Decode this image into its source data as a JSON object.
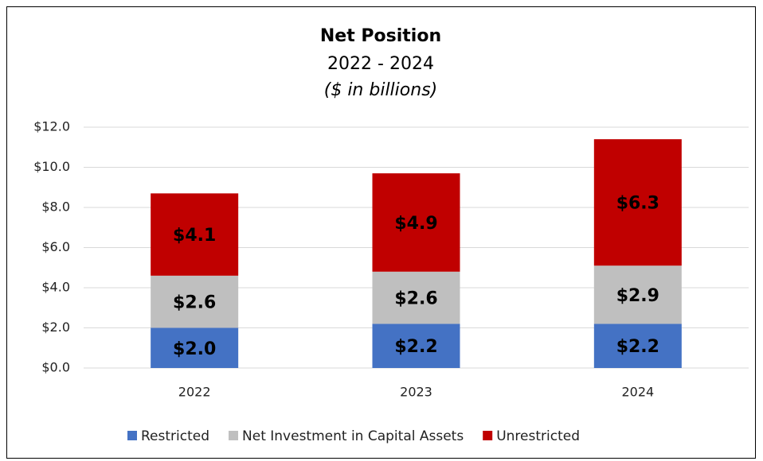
{
  "chart_data": {
    "type": "stacked_bar",
    "title": "Net Position",
    "subtitle": "2022 - 2024",
    "note": "($ in billions)",
    "categories": [
      "2022",
      "2023",
      "2024"
    ],
    "series": [
      {
        "name": "Restricted",
        "color": "#4472c4",
        "values": [
          2.0,
          2.2,
          2.2
        ],
        "value_labels": [
          "$2.0",
          "$2.2",
          "$2.2"
        ]
      },
      {
        "name": "Net Investment in Capital Assets",
        "color": "#bfbfbf",
        "values": [
          2.6,
          2.6,
          2.9
        ],
        "value_labels": [
          "$2.6",
          "$2.6",
          "$2.9"
        ]
      },
      {
        "name": "Unrestricted",
        "color": "#c00000",
        "values": [
          4.1,
          4.9,
          6.3
        ],
        "value_labels": [
          "$4.1",
          "$4.9",
          "$6.3"
        ]
      }
    ],
    "ylim": [
      0,
      12
    ],
    "yticks": [
      {
        "value": 0,
        "label": "$0.0"
      },
      {
        "value": 2,
        "label": "$2.0"
      },
      {
        "value": 4,
        "label": "$4.0"
      },
      {
        "value": 6,
        "label": "$6.0"
      },
      {
        "value": 8,
        "label": "$8.0"
      },
      {
        "value": 10,
        "label": "$10.0"
      },
      {
        "value": 12,
        "label": "$12.0"
      }
    ],
    "grid": true,
    "legend": "bottom"
  }
}
